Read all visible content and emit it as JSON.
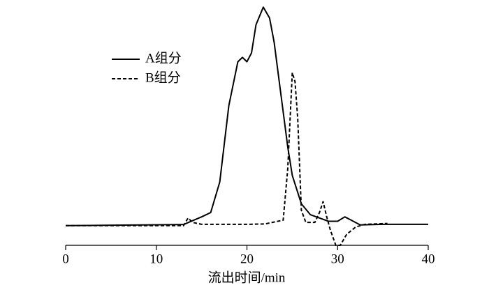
{
  "chart_data": {
    "type": "line",
    "x_label": "流出时间/min",
    "xlim": [
      0,
      40
    ],
    "xticks": [
      0,
      10,
      20,
      30,
      40
    ],
    "ylim": [
      -9,
      102
    ],
    "legend": "upper left",
    "series": [
      {
        "name": "A组分",
        "color": "#000000",
        "dash": "solid",
        "x": [
          0,
          13,
          15,
          16,
          17,
          18,
          19,
          19.5,
          20,
          20.5,
          21,
          21.8,
          22.5,
          23,
          23.5,
          24,
          24.5,
          25,
          26,
          27,
          28,
          29,
          30,
          30.8,
          31.5,
          32.5,
          35,
          40
        ],
        "values": [
          0,
          0.5,
          4,
          6,
          20,
          55,
          75,
          77,
          75,
          79,
          92,
          100,
          95,
          84,
          68,
          52,
          36,
          23,
          10,
          5,
          3.5,
          2,
          2,
          4,
          2.5,
          0.3,
          0.6,
          0.6
        ]
      },
      {
        "name": "B组分",
        "color": "#000000",
        "dash": "dashed",
        "x": [
          0,
          13,
          13.5,
          14,
          15,
          20,
          22,
          24,
          24.5,
          25,
          25.3,
          25.6,
          26,
          26.5,
          27.5,
          28,
          28.4,
          28.8,
          29.2,
          29.8,
          30.3,
          31,
          32,
          33,
          35.5
        ],
        "values": [
          0,
          0,
          3.5,
          1.5,
          0.6,
          0.6,
          0.8,
          2.5,
          26,
          70,
          66,
          49,
          7,
          1.5,
          1.5,
          6,
          11,
          4,
          -2,
          -9,
          -9,
          -4,
          -0.6,
          0.6,
          1
        ]
      }
    ]
  }
}
